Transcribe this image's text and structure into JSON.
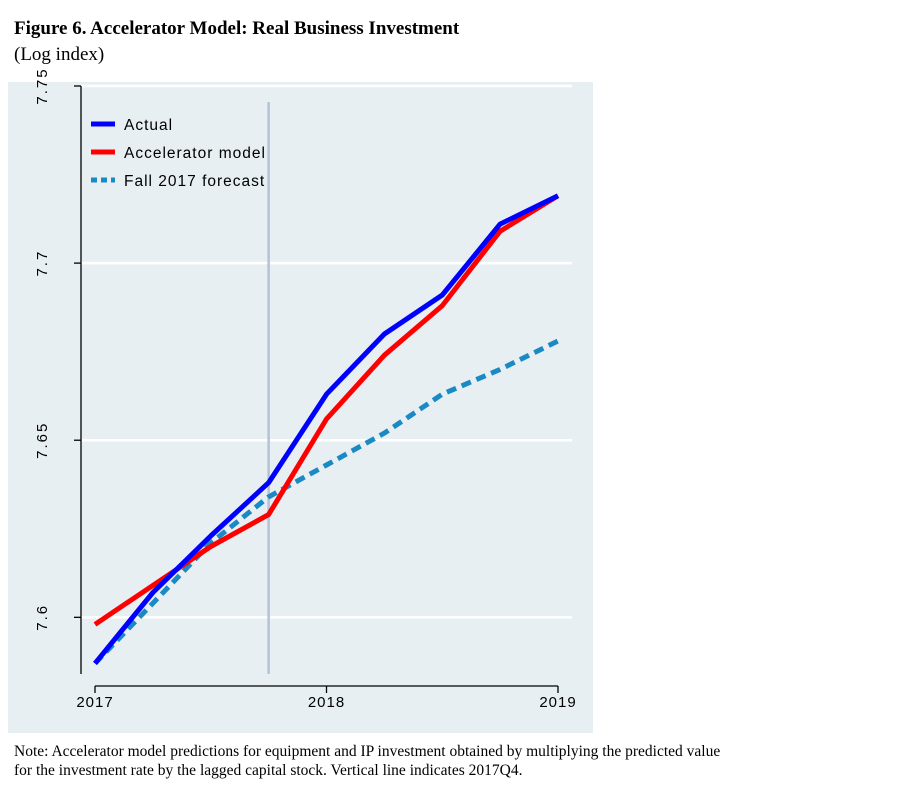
{
  "figure": {
    "title": "Figure 6. Accelerator Model: Real Business Investment",
    "subtitle": "(Log index)",
    "note_line1": "Note: Accelerator model predictions for equipment and IP investment obtained by multiplying the predicted value",
    "note_line2": "for the investment rate by the lagged capital stock. Vertical line indicates 2017Q4."
  },
  "chart_data": {
    "type": "line",
    "x": [
      2017.0,
      2017.25,
      2017.5,
      2017.75,
      2018.0,
      2018.25,
      2018.5,
      2018.75,
      2019.0
    ],
    "series": [
      {
        "name": "Actual",
        "color": "#0000ff",
        "style": "solid",
        "values": [
          7.587,
          7.607,
          7.623,
          7.638,
          7.663,
          7.68,
          7.691,
          7.711,
          7.719
        ]
      },
      {
        "name": "Accelerator model",
        "color": "#ff0000",
        "style": "solid",
        "values": [
          7.598,
          7.609,
          7.62,
          7.629,
          7.656,
          7.674,
          7.688,
          7.709,
          7.719
        ]
      },
      {
        "name": "Fall 2017 forecast",
        "color": "#1a8ac4",
        "style": "dashed",
        "values": [
          7.587,
          7.604,
          7.621,
          7.634,
          7.643,
          7.652,
          7.663,
          7.67,
          7.678
        ]
      }
    ],
    "xlim": [
      2017,
      2019
    ],
    "ylim": [
      7.584,
      7.75
    ],
    "xticks": [
      2017,
      2018,
      2019
    ],
    "xtick_labels": [
      "2017",
      "2018",
      "2019"
    ],
    "yticks": [
      7.6,
      7.65,
      7.7,
      7.75
    ],
    "ytick_labels": [
      "7.6",
      "7.65",
      "7.7",
      "7.75"
    ],
    "vline_x": 2017.75,
    "grid": "horizontal",
    "legend_position": "top-left",
    "colors": {
      "background": "#e8eff3",
      "grid": "#ffffff",
      "vline": "#b4c2d6"
    }
  }
}
